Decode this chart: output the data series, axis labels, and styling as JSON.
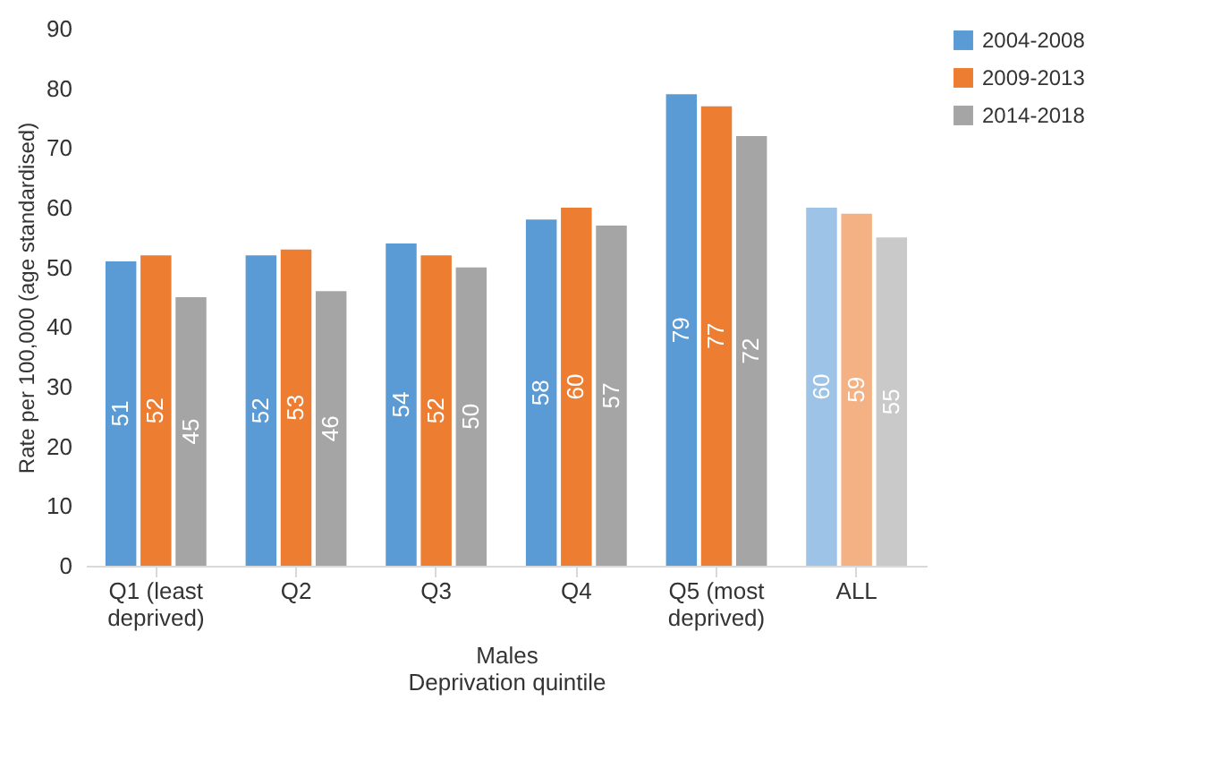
{
  "chart_data": {
    "type": "bar",
    "ylabel": "Rate per 100,000 (age standardised)",
    "xlabel": "Deprivation quintile",
    "annotations": [
      "Males"
    ],
    "categories": [
      "Q1 (least deprived)",
      "Q2",
      "Q3",
      "Q4",
      "Q5 (most deprived)",
      "ALL"
    ],
    "series": [
      {
        "name": "2004-2008",
        "color": "#5b9bd5",
        "colors": [
          "#5b9bd5",
          "#5b9bd5",
          "#5b9bd5",
          "#5b9bd5",
          "#5b9bd5",
          "#9dc3e6"
        ],
        "values": [
          51,
          52,
          54,
          58,
          79,
          60
        ]
      },
      {
        "name": "2009-2013",
        "color": "#ed7d31",
        "colors": [
          "#ed7d31",
          "#ed7d31",
          "#ed7d31",
          "#ed7d31",
          "#ed7d31",
          "#f4b183"
        ],
        "values": [
          52,
          53,
          52,
          60,
          77,
          59
        ]
      },
      {
        "name": "2014-2018",
        "color": "#a5a5a5",
        "colors": [
          "#a5a5a5",
          "#a5a5a5",
          "#a5a5a5",
          "#a5a5a5",
          "#a5a5a5",
          "#c9c9c9"
        ],
        "values": [
          45,
          46,
          50,
          57,
          72,
          55
        ]
      }
    ],
    "ylim": [
      0,
      90
    ],
    "yticks": [
      0,
      10,
      20,
      30,
      40,
      50,
      60,
      70,
      80,
      90
    ],
    "grid": false,
    "legend": "right",
    "data_labels": true
  }
}
